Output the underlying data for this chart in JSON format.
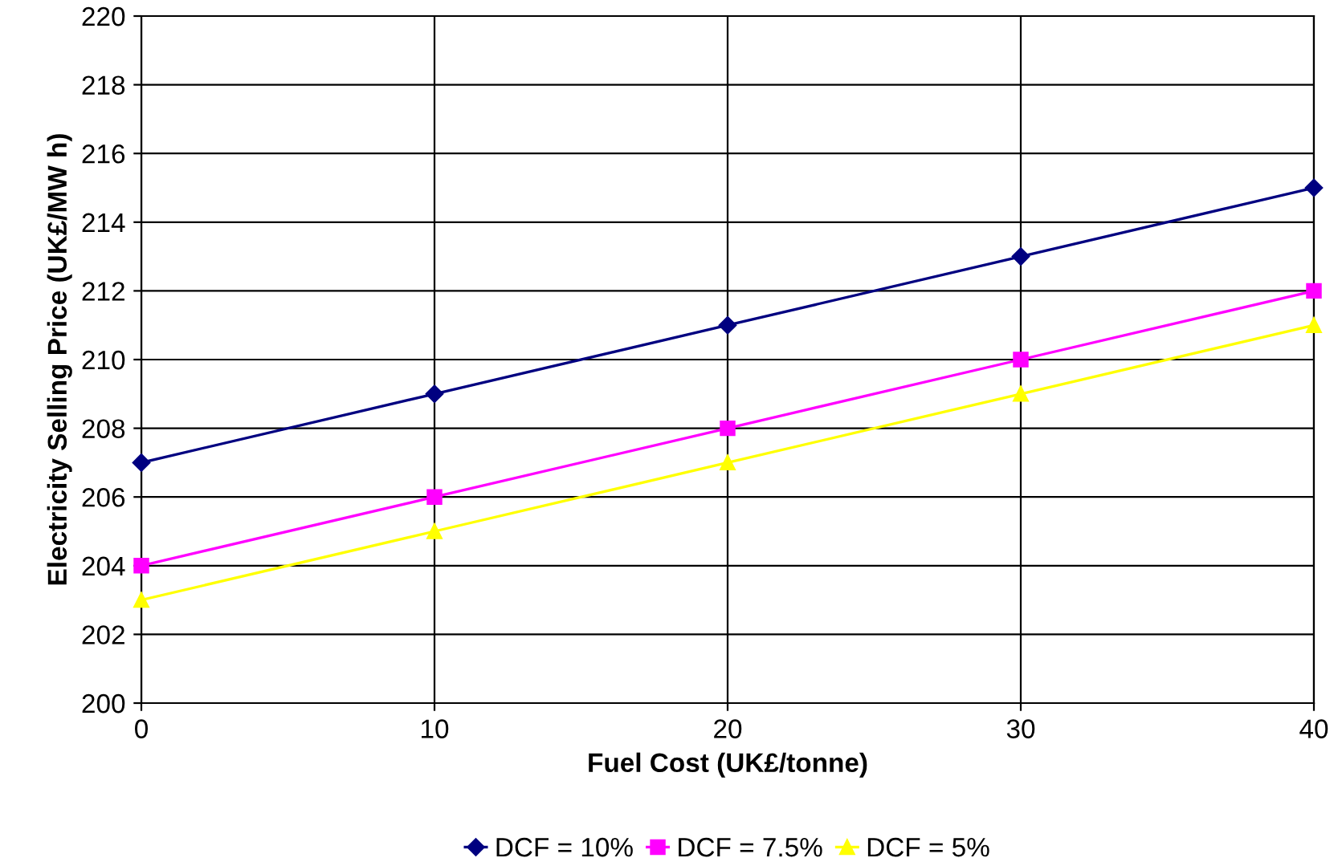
{
  "chart_data": {
    "type": "line",
    "xlabel": "Fuel Cost (UK£/tonne)",
    "ylabel": "Electricity Selling Price (UK£/MW h)",
    "x": [
      0,
      10,
      20,
      30,
      40
    ],
    "series": [
      {
        "name": "DCF = 10%",
        "color": "#000080",
        "marker": "diamond",
        "values": [
          207,
          209,
          211,
          213,
          215
        ]
      },
      {
        "name": "DCF = 7.5%",
        "color": "#ff00ff",
        "marker": "square",
        "values": [
          204,
          206,
          208,
          210,
          212
        ]
      },
      {
        "name": "DCF = 5%",
        "color": "#ffff00",
        "marker": "triangle",
        "values": [
          203,
          205,
          207,
          209,
          211
        ]
      }
    ],
    "xlim": [
      0,
      40
    ],
    "xticks": [
      0,
      10,
      20,
      30,
      40
    ],
    "ylim": [
      200,
      220
    ],
    "yticks": [
      200,
      202,
      204,
      206,
      208,
      210,
      212,
      214,
      216,
      218,
      220
    ],
    "grid": true,
    "legend": "bottom",
    "line_style": "solid"
  }
}
